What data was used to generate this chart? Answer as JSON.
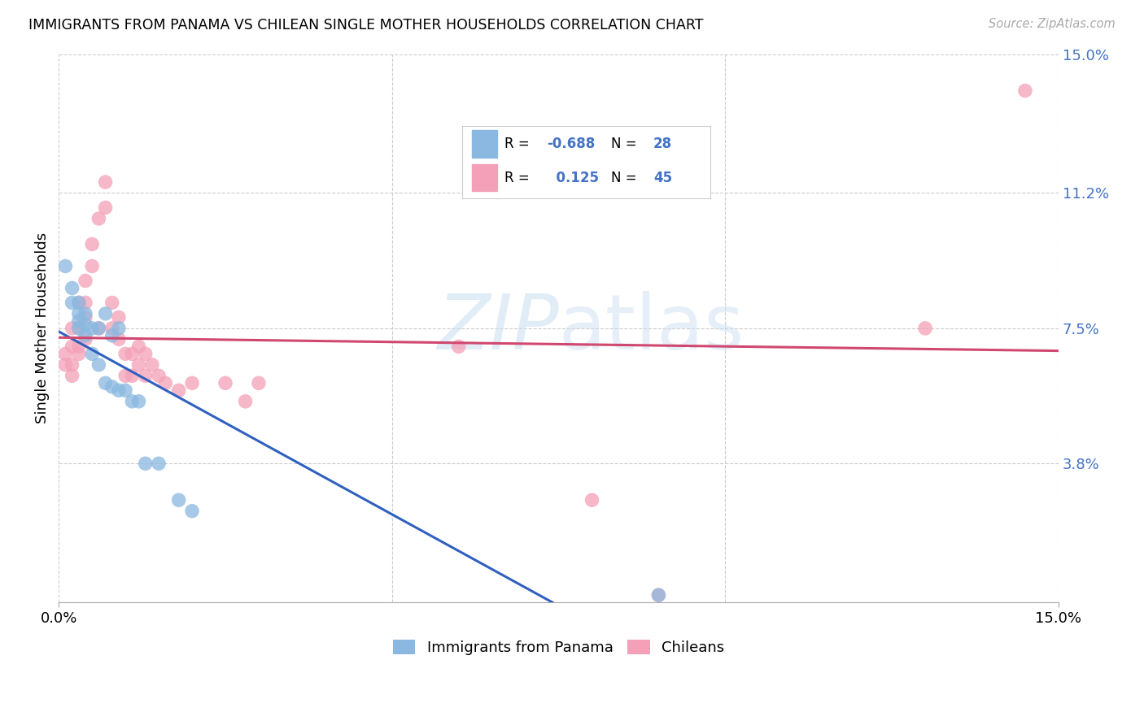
{
  "title": "IMMIGRANTS FROM PANAMA VS CHILEAN SINGLE MOTHER HOUSEHOLDS CORRELATION CHART",
  "source": "Source: ZipAtlas.com",
  "ylabel": "Single Mother Households",
  "xlim": [
    0.0,
    0.15
  ],
  "ylim": [
    0.0,
    0.15
  ],
  "ytick_labels": [
    "3.8%",
    "7.5%",
    "11.2%",
    "15.0%"
  ],
  "ytick_values": [
    0.038,
    0.075,
    0.112,
    0.15
  ],
  "grid_color": "#cccccc",
  "background_color": "#ffffff",
  "panama_color": "#8ab8e0",
  "chilean_color": "#f4a0b8",
  "panama_line_color": "#3060c0",
  "chilean_line_color": "#d04870",
  "panama_points": [
    [
      0.001,
      0.092
    ],
    [
      0.002,
      0.086
    ],
    [
      0.002,
      0.082
    ],
    [
      0.003,
      0.082
    ],
    [
      0.003,
      0.079
    ],
    [
      0.003,
      0.077
    ],
    [
      0.003,
      0.075
    ],
    [
      0.004,
      0.079
    ],
    [
      0.004,
      0.076
    ],
    [
      0.004,
      0.073
    ],
    [
      0.005,
      0.075
    ],
    [
      0.005,
      0.068
    ],
    [
      0.006,
      0.075
    ],
    [
      0.006,
      0.065
    ],
    [
      0.007,
      0.079
    ],
    [
      0.007,
      0.06
    ],
    [
      0.008,
      0.073
    ],
    [
      0.008,
      0.059
    ],
    [
      0.009,
      0.075
    ],
    [
      0.009,
      0.058
    ],
    [
      0.01,
      0.058
    ],
    [
      0.011,
      0.055
    ],
    [
      0.012,
      0.055
    ],
    [
      0.013,
      0.038
    ],
    [
      0.015,
      0.038
    ],
    [
      0.018,
      0.028
    ],
    [
      0.02,
      0.025
    ],
    [
      0.09,
      0.002
    ]
  ],
  "chilean_points": [
    [
      0.001,
      0.068
    ],
    [
      0.001,
      0.065
    ],
    [
      0.002,
      0.075
    ],
    [
      0.002,
      0.07
    ],
    [
      0.002,
      0.065
    ],
    [
      0.002,
      0.062
    ],
    [
      0.003,
      0.082
    ],
    [
      0.003,
      0.075
    ],
    [
      0.003,
      0.07
    ],
    [
      0.003,
      0.068
    ],
    [
      0.004,
      0.088
    ],
    [
      0.004,
      0.082
    ],
    [
      0.004,
      0.078
    ],
    [
      0.004,
      0.072
    ],
    [
      0.005,
      0.098
    ],
    [
      0.005,
      0.092
    ],
    [
      0.006,
      0.105
    ],
    [
      0.006,
      0.075
    ],
    [
      0.007,
      0.115
    ],
    [
      0.007,
      0.108
    ],
    [
      0.008,
      0.082
    ],
    [
      0.008,
      0.075
    ],
    [
      0.009,
      0.078
    ],
    [
      0.009,
      0.072
    ],
    [
      0.01,
      0.068
    ],
    [
      0.01,
      0.062
    ],
    [
      0.011,
      0.068
    ],
    [
      0.011,
      0.062
    ],
    [
      0.012,
      0.07
    ],
    [
      0.012,
      0.065
    ],
    [
      0.013,
      0.068
    ],
    [
      0.013,
      0.062
    ],
    [
      0.014,
      0.065
    ],
    [
      0.015,
      0.062
    ],
    [
      0.016,
      0.06
    ],
    [
      0.018,
      0.058
    ],
    [
      0.02,
      0.06
    ],
    [
      0.025,
      0.06
    ],
    [
      0.028,
      0.055
    ],
    [
      0.03,
      0.06
    ],
    [
      0.06,
      0.07
    ],
    [
      0.08,
      0.028
    ],
    [
      0.09,
      0.002
    ],
    [
      0.13,
      0.075
    ],
    [
      0.145,
      0.14
    ]
  ]
}
